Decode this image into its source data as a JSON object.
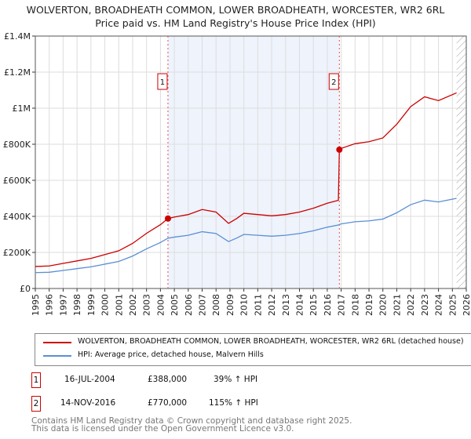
{
  "chart_data": {
    "type": "line",
    "title": "WOLVERTON, BROADHEATH COMMON, LOWER BROADHEATH, WORCESTER, WR2 6RL",
    "subtitle": "Price paid vs. HM Land Registry's House Price Index (HPI)",
    "xlim": [
      1995,
      2026
    ],
    "ylim": [
      0,
      1400000
    ],
    "xticks": [
      "1995",
      "1996",
      "1997",
      "1998",
      "1999",
      "2000",
      "2001",
      "2002",
      "2003",
      "2004",
      "2005",
      "2006",
      "2007",
      "2008",
      "2009",
      "2010",
      "2011",
      "2012",
      "2013",
      "2014",
      "2015",
      "2016",
      "2017",
      "2018",
      "2019",
      "2020",
      "2021",
      "2022",
      "2023",
      "2024",
      "2025",
      "2026"
    ],
    "yticks": [
      {
        "v": 0,
        "label": "£0"
      },
      {
        "v": 200000,
        "label": "£200K"
      },
      {
        "v": 400000,
        "label": "£400K"
      },
      {
        "v": 600000,
        "label": "£600K"
      },
      {
        "v": 800000,
        "label": "£800K"
      },
      {
        "v": 1000000,
        "label": "£1M"
      },
      {
        "v": 1200000,
        "label": "£1.2M"
      },
      {
        "v": 1400000,
        "label": "£1.4M"
      }
    ],
    "grid": true,
    "x": [
      1995,
      1996,
      1997,
      1998,
      1999,
      2000,
      2001,
      2002,
      2003,
      2004,
      2004.54,
      2005,
      2006,
      2007,
      2008,
      2008.9,
      2009.5,
      2010,
      2011,
      2012,
      2013,
      2014,
      2015,
      2016,
      2016.8,
      2016.87,
      2017,
      2018,
      2019,
      2020,
      2021,
      2022,
      2023,
      2024,
      2025.3
    ],
    "series": [
      {
        "name": "WOLVERTON, BROADHEATH COMMON, LOWER BROADHEATH, WORCESTER, WR2 6RL (detached house)",
        "color": "#cc0000",
        "values": [
          122000,
          125000,
          139000,
          153000,
          167000,
          188000,
          209000,
          250000,
          306000,
          354000,
          388000,
          396000,
          410000,
          438000,
          424000,
          361000,
          389000,
          417000,
          410000,
          403000,
          410000,
          424000,
          445000,
          473000,
          489000,
          770000,
          777000,
          803000,
          814000,
          835000,
          911000,
          1009000,
          1063000,
          1042000,
          1085000
        ]
      },
      {
        "name": "HPI: Average price, detached house, Malvern Hills",
        "color": "#5b8fd4",
        "values": [
          88000,
          90000,
          100000,
          110000,
          120000,
          135000,
          150000,
          180000,
          220000,
          255000,
          279000,
          285000,
          295000,
          315000,
          305000,
          260000,
          280000,
          300000,
          295000,
          290000,
          295000,
          305000,
          320000,
          340000,
          352000,
          355000,
          358000,
          370000,
          375000,
          385000,
          420000,
          465000,
          490000,
          480000,
          500000
        ]
      }
    ],
    "sales": [
      {
        "id": "1",
        "x": 2004.54,
        "y": 388000,
        "date": "16-JUL-2004",
        "price": "£388,000",
        "hpi": "39% ↑ HPI"
      },
      {
        "id": "2",
        "x": 2016.87,
        "y": 770000,
        "date": "14-NOV-2016",
        "price": "£770,000",
        "hpi": "115% ↑ HPI"
      }
    ],
    "shaded_range": [
      2004.54,
      2016.87
    ],
    "forecast_hatch_from": 2025.3,
    "legend_position": "below"
  },
  "footer": [
    "Contains HM Land Registry data © Crown copyright and database right 2025.",
    "This data is licensed under the Open Government Licence v3.0."
  ]
}
